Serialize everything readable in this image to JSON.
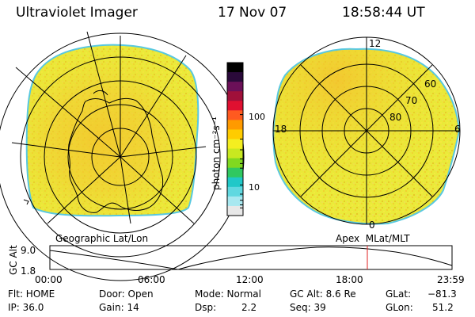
{
  "header": {
    "instrument": "Ultraviolet Imager",
    "date": "17 Nov 07",
    "time": "18:58:44 UT"
  },
  "colorbar": {
    "unit_label": "photon cm⁻²s⁻¹",
    "tick_high": "100",
    "tick_low": "10",
    "colors": [
      "#000000",
      "#2a0a3a",
      "#6b1058",
      "#a0103a",
      "#e01030",
      "#ff5a20",
      "#ff9a00",
      "#ffcc00",
      "#f4ee20",
      "#c8e820",
      "#80d820",
      "#30c860",
      "#20c8c8",
      "#60d8e0",
      "#a8e8f0",
      "#e8e8e8"
    ]
  },
  "left_map": {
    "caption": "Geographic Lat/Lon"
  },
  "right_map": {
    "caption": "Apex  MLat/MLT",
    "mlt_labels": {
      "top": "12",
      "left": "18",
      "right": "6",
      "bottom": "0"
    },
    "mlat_labels": [
      "60",
      "70",
      "80"
    ]
  },
  "altitude_plot": {
    "ylabel": "GC Alt",
    "y_ticks": [
      "9.0",
      "1.8"
    ],
    "x_ticks": [
      "00:00",
      "06:00",
      "12:00",
      "18:00",
      "23:59"
    ],
    "marker_color": "#e02020"
  },
  "status": {
    "flt": "Flt: HOME",
    "ip": "IP: 36.0",
    "door": "Door: Open",
    "gain": "Gain: 14",
    "mode": "Mode: Normal",
    "dsp_label": "Dsp:",
    "dsp_value": "2.2",
    "gcalt": "GC Alt: 8.6 Re",
    "seq": "Seq: 39",
    "glat_label": "GLat:",
    "glat_value": "−81.3",
    "glon_label": "GLon:",
    "glon_value": "51.2"
  }
}
